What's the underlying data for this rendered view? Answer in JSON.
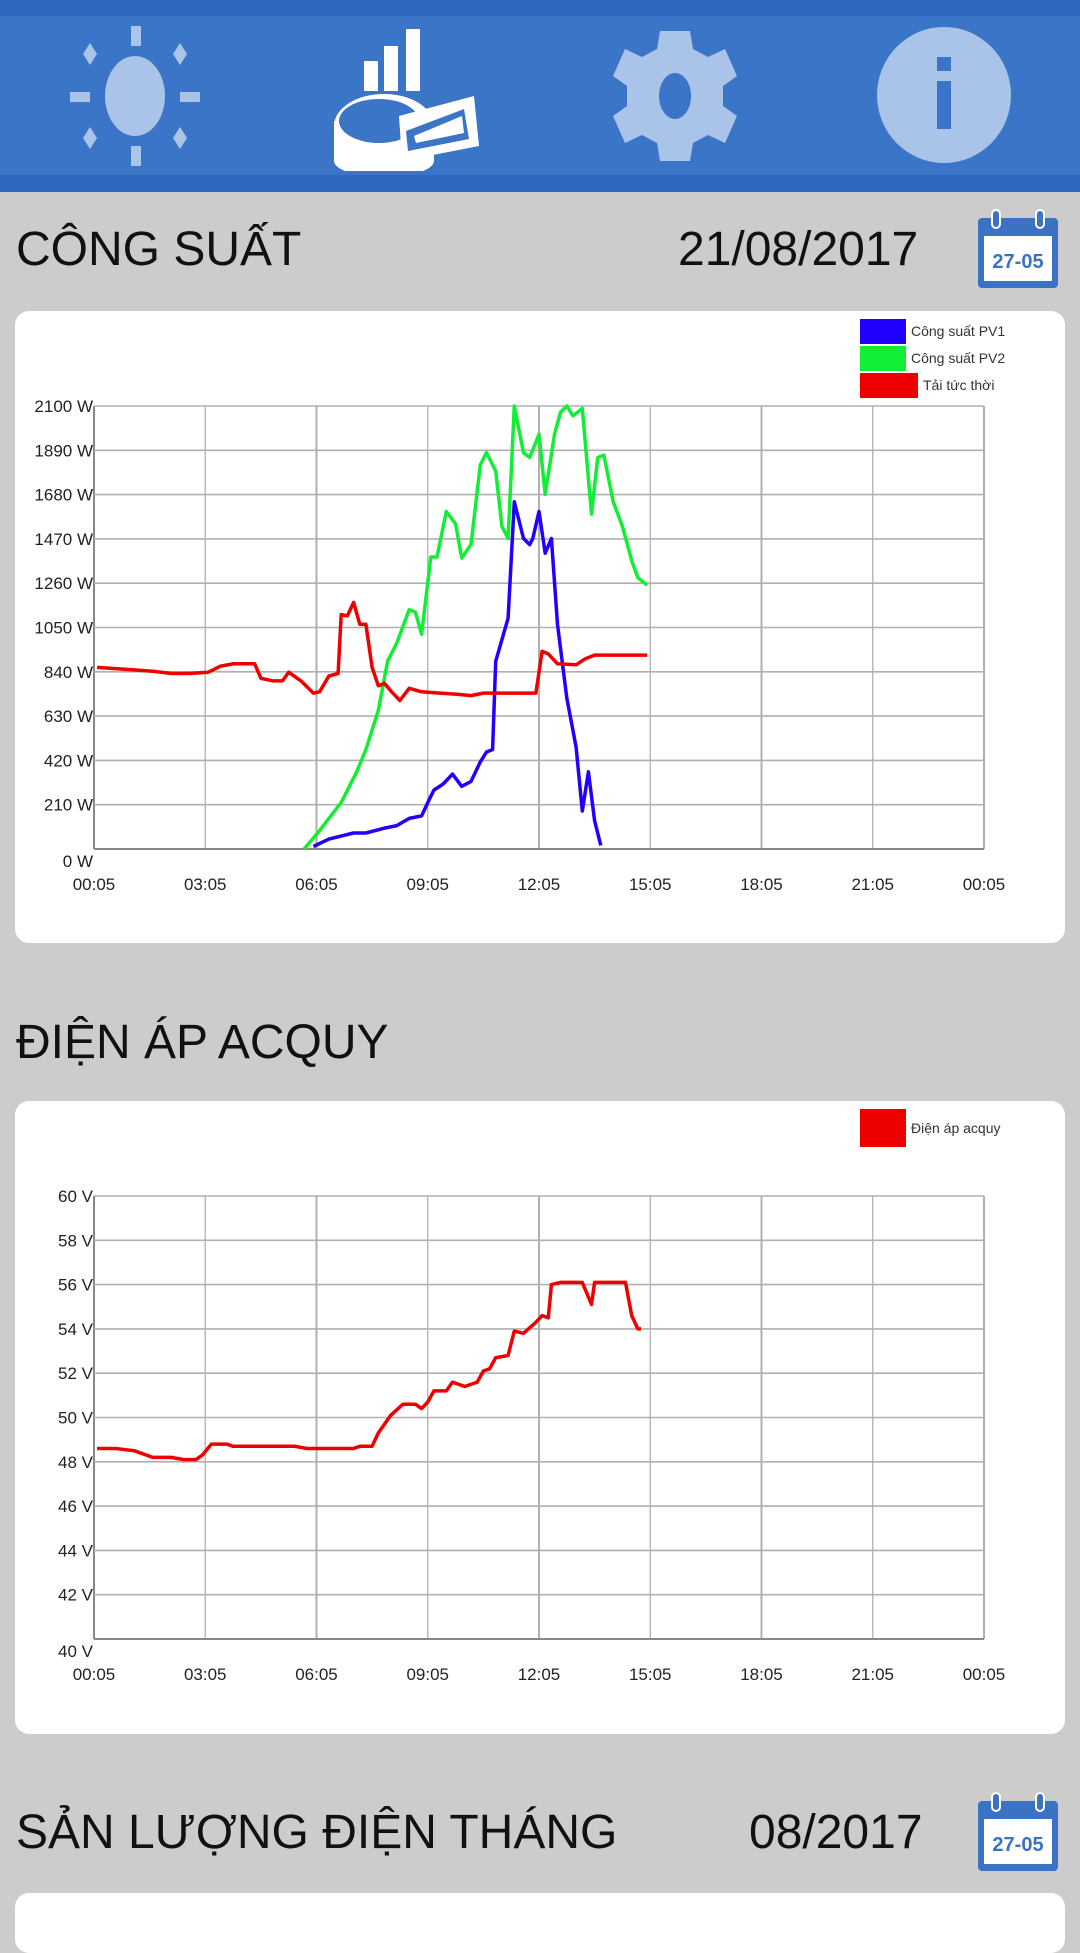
{
  "nav": {
    "items": [
      {
        "name": "sun-icon",
        "active": false
      },
      {
        "name": "chart-icon",
        "active": true
      },
      {
        "name": "gear-icon",
        "active": false
      },
      {
        "name": "info-icon",
        "active": false
      }
    ],
    "colors": {
      "bar": "#2e69c1",
      "band": "#3a75c8",
      "icon": "#a9c4e8",
      "active_icon": "#ffffff"
    }
  },
  "sections": {
    "power": {
      "title": "CÔNG SUẤT",
      "date": "21/08/2017",
      "calendar_icon_text": "27-05"
    },
    "battery": {
      "title": "ĐIỆN ÁP ACQUY"
    },
    "monthly": {
      "title": "SẢN LƯỢNG ĐIỆN THÁNG",
      "date": "08/2017",
      "calendar_icon_text": "27-05"
    }
  },
  "chart_data": [
    {
      "type": "line",
      "x_ticks": [
        "00:05",
        "03:05",
        "06:05",
        "09:05",
        "12:05",
        "15:05",
        "18:05",
        "21:05",
        "00:05"
      ],
      "y_ticks": [
        "0 W",
        "210 W",
        "420 W",
        "630 W",
        "840 W",
        "1050 W",
        "1260 W",
        "1470 W",
        "1680 W",
        "1890 W",
        "2100 W"
      ],
      "xlim": [
        "00:05",
        "00:05 (+1 day)"
      ],
      "ylim": [
        0,
        2100
      ],
      "yunit": "W",
      "grid": true,
      "legend": "top-right",
      "series": [
        {
          "name": "Công suất PV1",
          "color": "#2200ff",
          "x": [
            "06:00",
            "06:25",
            "07:05",
            "07:25",
            "07:55",
            "08:15",
            "08:35",
            "08:55",
            "09:10",
            "09:15",
            "09:30",
            "09:45",
            "10:00",
            "10:15",
            "10:30",
            "10:40",
            "10:50",
            "10:55",
            "11:15",
            "11:25",
            "11:40",
            "11:50",
            "11:55",
            "12:05",
            "12:15",
            "12:25",
            "12:35",
            "12:50",
            "13:05",
            "13:15",
            "13:25",
            "13:35",
            "13:45"
          ],
          "y": [
            12,
            47,
            76,
            76,
            99,
            111,
            145,
            157,
            250,
            279,
            308,
            355,
            297,
            320,
            413,
            460,
            471,
            890,
            1094,
            1646,
            1472,
            1443,
            1472,
            1600,
            1402,
            1472,
            1065,
            716,
            483,
            180,
            366,
            134,
            17
          ]
        },
        {
          "name": "Công suất PV2",
          "color": "#11ee33",
          "x": [
            "05:45",
            "06:10",
            "06:45",
            "07:10",
            "07:25",
            "07:45",
            "08:00",
            "08:15",
            "08:35",
            "08:45",
            "08:55",
            "09:10",
            "09:20",
            "09:35",
            "09:50",
            "10:00",
            "10:15",
            "10:30",
            "10:40",
            "10:55",
            "11:05",
            "11:15",
            "11:25",
            "11:40",
            "11:50",
            "12:05",
            "12:15",
            "12:30",
            "12:40",
            "12:50",
            "13:00",
            "13:15",
            "13:30",
            "13:40",
            "13:50",
            "14:05",
            "14:20",
            "14:35",
            "14:45",
            "15:00"
          ],
          "y": [
            0,
            87,
            221,
            366,
            471,
            657,
            890,
            977,
            1134,
            1123,
            1018,
            1384,
            1384,
            1600,
            1541,
            1379,
            1443,
            1821,
            1879,
            1792,
            1530,
            1472,
            2100,
            1879,
            1856,
            1966,
            1681,
            1966,
            2071,
            2100,
            2053,
            2088,
            1588,
            1856,
            1867,
            1646,
            1530,
            1367,
            1286,
            1251
          ]
        },
        {
          "name": "Tải tức thời",
          "color": "#ee0000",
          "x": [
            "00:10",
            "00:40",
            "01:10",
            "01:40",
            "02:10",
            "02:40",
            "03:10",
            "03:30",
            "03:50",
            "04:10",
            "04:25",
            "04:35",
            "04:55",
            "05:10",
            "05:20",
            "05:40",
            "06:00",
            "06:10",
            "06:25",
            "06:40",
            "06:45",
            "06:55",
            "07:05",
            "07:15",
            "07:25",
            "07:35",
            "07:45",
            "07:55",
            "08:05",
            "08:20",
            "08:35",
            "08:55",
            "09:25",
            "09:55",
            "10:15",
            "10:35",
            "11:05",
            "11:35",
            "12:00",
            "12:10",
            "12:20",
            "12:35",
            "13:05",
            "13:20",
            "13:35",
            "14:05",
            "14:35",
            "15:00"
          ],
          "y": [
            861,
            855,
            849,
            843,
            832,
            832,
            838,
            867,
            878,
            878,
            878,
            809,
            797,
            797,
            838,
            797,
            739,
            745,
            820,
            832,
            1111,
            1105,
            1169,
            1065,
            1065,
            861,
            774,
            785,
            750,
            704,
            762,
            745,
            739,
            733,
            727,
            739,
            739,
            739,
            739,
            937,
            925,
            878,
            873,
            902,
            919,
            919,
            919,
            919
          ]
        }
      ]
    },
    {
      "type": "line",
      "x_ticks": [
        "00:05",
        "03:05",
        "06:05",
        "09:05",
        "12:05",
        "15:05",
        "18:05",
        "21:05",
        "00:05"
      ],
      "y_ticks": [
        "40 V",
        "42 V",
        "44 V",
        "46 V",
        "48 V",
        "50 V",
        "52 V",
        "54 V",
        "56 V",
        "58 V",
        "60 V"
      ],
      "xlim": [
        "00:05",
        "00:05 (+1 day)"
      ],
      "ylim": [
        40,
        60
      ],
      "yunit": "V",
      "grid": true,
      "legend": "top-right",
      "series": [
        {
          "name": "Điện áp acquy",
          "color": "#ee0000",
          "x": [
            "00:10",
            "00:40",
            "01:10",
            "01:40",
            "02:10",
            "02:30",
            "02:50",
            "03:00",
            "03:15",
            "03:40",
            "03:50",
            "05:30",
            "05:50",
            "07:00",
            "07:05",
            "07:15",
            "07:35",
            "07:45",
            "08:05",
            "08:25",
            "08:45",
            "08:55",
            "09:05",
            "09:15",
            "09:35",
            "09:45",
            "10:05",
            "10:25",
            "10:35",
            "10:45",
            "10:55",
            "11:15",
            "11:25",
            "11:40",
            "12:00",
            "12:10",
            "12:20",
            "12:25",
            "12:40",
            "13:15",
            "13:30",
            "13:35",
            "14:05",
            "14:25",
            "14:35",
            "14:45",
            "14:50"
          ],
          "y": [
            48.6,
            48.6,
            48.5,
            48.2,
            48.2,
            48.1,
            48.1,
            48.3,
            48.8,
            48.8,
            48.7,
            48.7,
            48.6,
            48.6,
            48.6,
            48.7,
            48.7,
            49.3,
            50.1,
            50.6,
            50.6,
            50.4,
            50.7,
            51.2,
            51.2,
            51.6,
            51.4,
            51.6,
            52.1,
            52.2,
            52.7,
            52.8,
            53.9,
            53.8,
            54.3,
            54.6,
            54.5,
            56.0,
            56.1,
            56.1,
            55.1,
            56.1,
            56.1,
            56.1,
            54.6,
            54.0,
            54.0
          ]
        }
      ]
    }
  ]
}
